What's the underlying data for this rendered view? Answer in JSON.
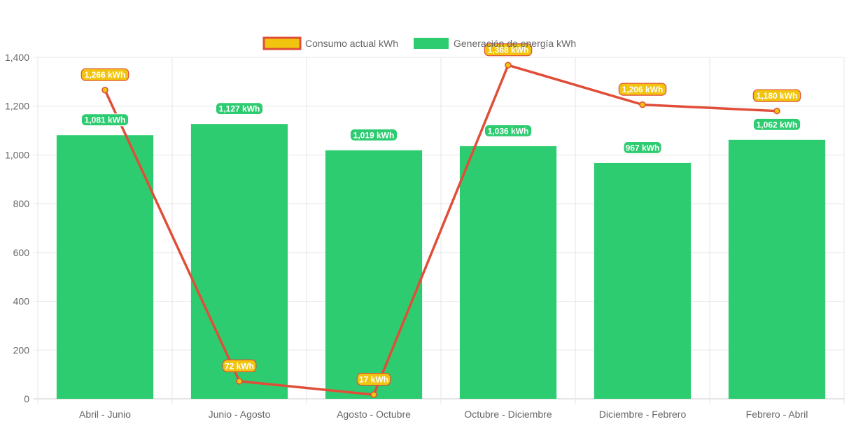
{
  "chart_data": {
    "type": "bar",
    "categories": [
      "Abril - Junio",
      "Junio - Agosto",
      "Agosto - Octubre",
      "Octubre - Diciembre",
      "Diciembre - Febrero",
      "Febrero - Abril"
    ],
    "series": [
      {
        "name": "Consumo actual kWh",
        "type": "line",
        "values": [
          1266,
          72,
          17,
          1368,
          1206,
          1180
        ],
        "labels": [
          "1,266 kWh",
          "72 kWh",
          "17 kWh",
          "1,368 kWh",
          "1,206 kWh",
          "1,180 kWh"
        ],
        "color": "#e04e39",
        "label_color": "#f1c40f"
      },
      {
        "name": "Generación de energía kWh",
        "type": "bar",
        "values": [
          1081,
          1127,
          1019,
          1036,
          967,
          1062
        ],
        "labels": [
          "1,081 kWh",
          "1,127 kWh",
          "1,019 kWh",
          "1,036 kWh",
          "967 kWh",
          "1,062 kWh"
        ],
        "color": "#2ecc71"
      }
    ],
    "yticks": [
      "0",
      "200",
      "400",
      "600",
      "800",
      "1,000",
      "1,200",
      "1,400"
    ],
    "ylim": [
      0,
      1400
    ],
    "grid": true,
    "legend": "top-center"
  }
}
